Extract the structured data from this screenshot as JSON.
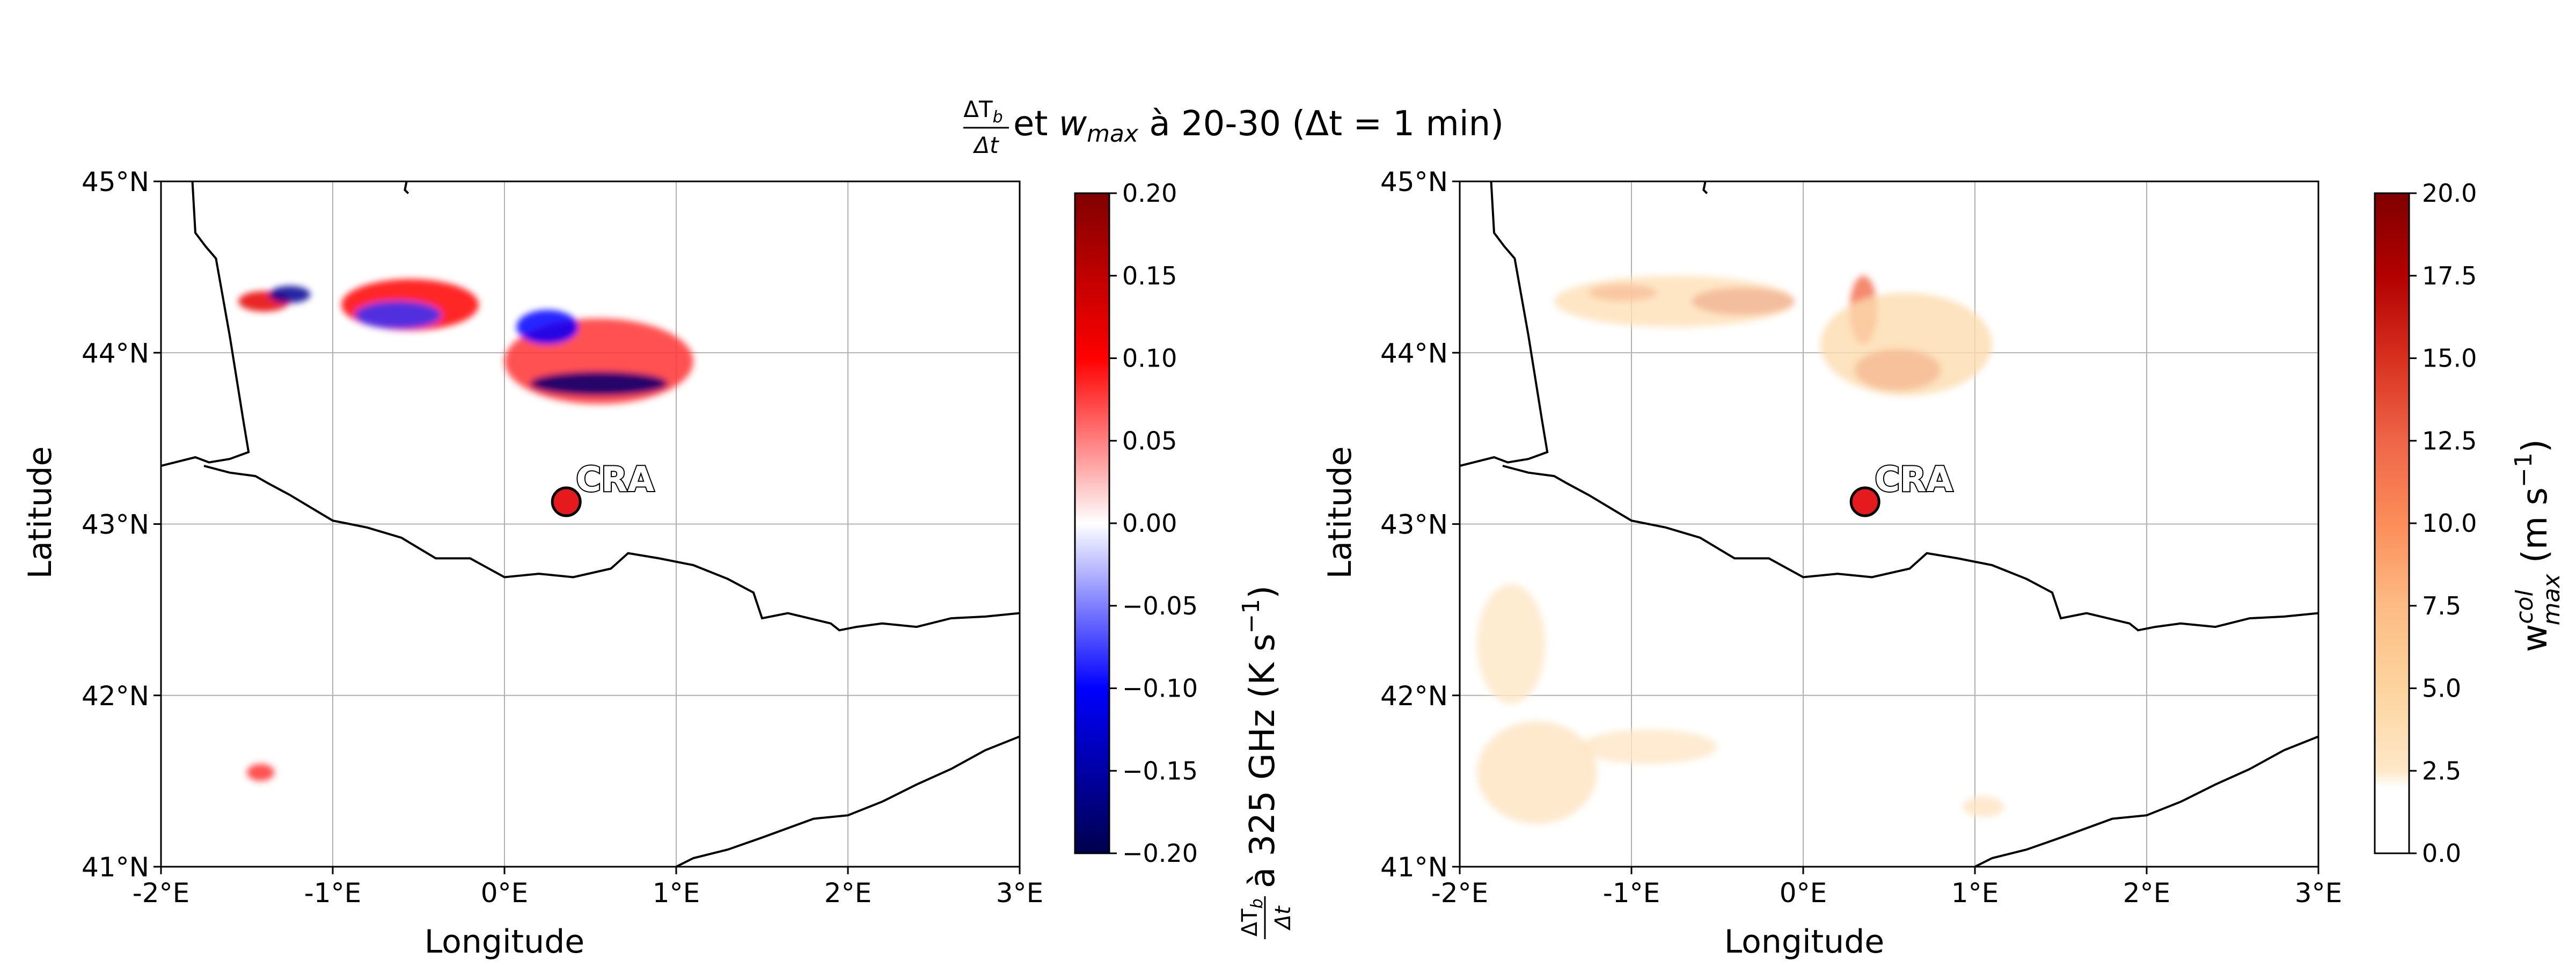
{
  "figure": {
    "title": {
      "frac_num": "ΔT",
      "frac_num_sub": "b",
      "frac_den": "Δt",
      "rest_prefix": " et ",
      "w": "w",
      "w_sub": "max",
      "rest_suffix": " à 20-30 (Δt = 1 min)"
    }
  },
  "chart_data": [
    {
      "type": "heatmap",
      "panel": "left",
      "xlabel": "Longitude",
      "ylabel": "Latitude",
      "xlim": [
        -2,
        3
      ],
      "ylim": [
        41,
        45
      ],
      "x_ticks": [
        -2,
        -1,
        0,
        1,
        2,
        3
      ],
      "x_tick_labels": [
        "-2°E",
        "-1°E",
        "0°E",
        "1°E",
        "2°E",
        "3°E"
      ],
      "y_ticks": [
        41,
        42,
        43,
        44,
        45
      ],
      "y_tick_labels": [
        "41°N",
        "42°N",
        "43°N",
        "44°N",
        "45°N"
      ],
      "grid": true,
      "marker": {
        "label": "CRA",
        "lon": 0.36,
        "lat": 43.13,
        "color": "#e41a1c"
      },
      "colorbar": {
        "cmap": "seismic",
        "vmin": -0.2,
        "vmax": 0.2,
        "ticks": [
          -0.2,
          -0.15,
          -0.1,
          -0.05,
          0.0,
          0.05,
          0.1,
          0.15,
          0.2
        ],
        "tick_labels": [
          "−0.20",
          "−0.15",
          "−0.10",
          "−0.05",
          "0.00",
          "0.05",
          "0.10",
          "0.15",
          "0.20"
        ],
        "label_frac_num": "ΔT",
        "label_frac_num_sub": "b",
        "label_frac_den": "Δt",
        "label_rest": " à 325 GHz (K s",
        "label_exp": "−1",
        "label_close": ")"
      },
      "features": [
        {
          "lon": -1.4,
          "lat": 44.3,
          "rx": 0.15,
          "ry": 0.06,
          "sign": 1,
          "intensity": 0.6
        },
        {
          "lon": -1.25,
          "lat": 44.34,
          "rx": 0.12,
          "ry": 0.05,
          "sign": -1,
          "intensity": 0.8
        },
        {
          "lon": -0.55,
          "lat": 44.28,
          "rx": 0.4,
          "ry": 0.15,
          "sign": 1,
          "intensity": 0.5
        },
        {
          "lon": -0.62,
          "lat": 44.22,
          "rx": 0.25,
          "ry": 0.08,
          "sign": -1,
          "intensity": 0.4
        },
        {
          "lon": 0.55,
          "lat": 43.95,
          "rx": 0.55,
          "ry": 0.25,
          "sign": 1,
          "intensity": 0.4
        },
        {
          "lon": 0.55,
          "lat": 43.82,
          "rx": 0.4,
          "ry": 0.07,
          "sign": -1,
          "intensity": 0.9
        },
        {
          "lon": 0.25,
          "lat": 44.15,
          "rx": 0.18,
          "ry": 0.1,
          "sign": -1,
          "intensity": 0.5
        },
        {
          "lon": -1.42,
          "lat": 41.55,
          "rx": 0.08,
          "ry": 0.05,
          "sign": 1,
          "intensity": 0.4
        }
      ]
    },
    {
      "type": "heatmap",
      "panel": "right",
      "xlabel": "Longitude",
      "ylabel": "Latitude",
      "xlim": [
        -2,
        3
      ],
      "ylim": [
        41,
        45
      ],
      "x_ticks": [
        -2,
        -1,
        0,
        1,
        2,
        3
      ],
      "x_tick_labels": [
        "-2°E",
        "-1°E",
        "0°E",
        "1°E",
        "2°E",
        "3°E"
      ],
      "y_ticks": [
        41,
        42,
        43,
        44,
        45
      ],
      "y_tick_labels": [
        "41°N",
        "42°N",
        "43°N",
        "44°N",
        "45°N"
      ],
      "grid": true,
      "marker": {
        "label": "CRA",
        "lon": 0.36,
        "lat": 43.13,
        "color": "#e41a1c"
      },
      "colorbar": {
        "cmap": "OrRd",
        "vmin": 0.0,
        "vmax": 20.0,
        "ticks": [
          0.0,
          2.5,
          5.0,
          7.5,
          10.0,
          12.5,
          15.0,
          17.5,
          20.0
        ],
        "tick_labels": [
          "0.0",
          "2.5",
          "5.0",
          "7.5",
          "10.0",
          "12.5",
          "15.0",
          "17.5",
          "20.0"
        ],
        "label_main": "w",
        "label_sup": "col",
        "label_sub": "max",
        "label_rest": " (m s",
        "label_exp": "−1",
        "label_close": ")"
      },
      "features": [
        {
          "lon": -1.05,
          "lat": 44.35,
          "rx": 0.2,
          "ry": 0.05,
          "value": 14
        },
        {
          "lon": -0.35,
          "lat": 44.3,
          "rx": 0.3,
          "ry": 0.08,
          "value": 17
        },
        {
          "lon": 0.35,
          "lat": 44.25,
          "rx": 0.08,
          "ry": 0.2,
          "value": 12
        },
        {
          "lon": 0.55,
          "lat": 43.9,
          "rx": 0.25,
          "ry": 0.12,
          "value": 15
        },
        {
          "lon": 0.6,
          "lat": 44.05,
          "rx": 0.5,
          "ry": 0.3,
          "value": 4
        },
        {
          "lon": -0.75,
          "lat": 44.3,
          "rx": 0.7,
          "ry": 0.15,
          "value": 3.5
        },
        {
          "lon": -1.55,
          "lat": 41.55,
          "rx": 0.35,
          "ry": 0.3,
          "value": 3
        },
        {
          "lon": -1.7,
          "lat": 42.3,
          "rx": 0.2,
          "ry": 0.35,
          "value": 2.6
        },
        {
          "lon": -0.9,
          "lat": 41.7,
          "rx": 0.4,
          "ry": 0.1,
          "value": 2.7
        },
        {
          "lon": 1.05,
          "lat": 41.35,
          "rx": 0.12,
          "ry": 0.06,
          "value": 3
        }
      ]
    }
  ]
}
